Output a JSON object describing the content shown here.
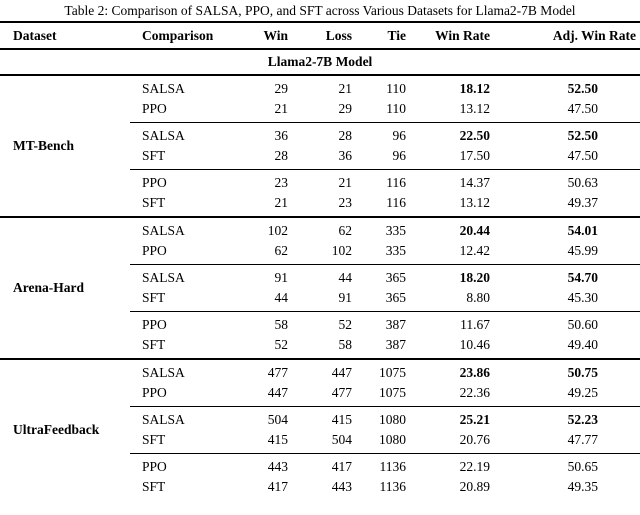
{
  "title": "Table 2: Comparison of SALSA, PPO, and SFT across Various Datasets for Llama2-7B Model",
  "table": {
    "columns": {
      "dataset": "Dataset",
      "comparison": "Comparison",
      "win": "Win",
      "loss": "Loss",
      "tie": "Tie",
      "win_rate": "Win Rate",
      "adj_win_rate": "Adj. Win Rate"
    },
    "model_header": "Llama2-7B Model",
    "groups": [
      {
        "dataset": "MT-Bench",
        "pairs": [
          {
            "rows": [
              {
                "comparison": "SALSA",
                "win": "29",
                "loss": "21",
                "tie": "110",
                "win_rate": "18.12",
                "adj_win_rate": "52.50",
                "bold": true
              },
              {
                "comparison": "PPO",
                "win": "21",
                "loss": "29",
                "tie": "110",
                "win_rate": "13.12",
                "adj_win_rate": "47.50",
                "bold": false
              }
            ]
          },
          {
            "rows": [
              {
                "comparison": "SALSA",
                "win": "36",
                "loss": "28",
                "tie": "96",
                "win_rate": "22.50",
                "adj_win_rate": "52.50",
                "bold": true
              },
              {
                "comparison": "SFT",
                "win": "28",
                "loss": "36",
                "tie": "96",
                "win_rate": "17.50",
                "adj_win_rate": "47.50",
                "bold": false
              }
            ]
          },
          {
            "rows": [
              {
                "comparison": "PPO",
                "win": "23",
                "loss": "21",
                "tie": "116",
                "win_rate": "14.37",
                "adj_win_rate": "50.63",
                "bold": false
              },
              {
                "comparison": "SFT",
                "win": "21",
                "loss": "23",
                "tie": "116",
                "win_rate": "13.12",
                "adj_win_rate": "49.37",
                "bold": false
              }
            ]
          }
        ]
      },
      {
        "dataset": "Arena-Hard",
        "pairs": [
          {
            "rows": [
              {
                "comparison": "SALSA",
                "win": "102",
                "loss": "62",
                "tie": "335",
                "win_rate": "20.44",
                "adj_win_rate": "54.01",
                "bold": true
              },
              {
                "comparison": "PPO",
                "win": "62",
                "loss": "102",
                "tie": "335",
                "win_rate": "12.42",
                "adj_win_rate": "45.99",
                "bold": false
              }
            ]
          },
          {
            "rows": [
              {
                "comparison": "SALSA",
                "win": "91",
                "loss": "44",
                "tie": "365",
                "win_rate": "18.20",
                "adj_win_rate": "54.70",
                "bold": true
              },
              {
                "comparison": "SFT",
                "win": "44",
                "loss": "91",
                "tie": "365",
                "win_rate": "8.80",
                "adj_win_rate": "45.30",
                "bold": false
              }
            ]
          },
          {
            "rows": [
              {
                "comparison": "PPO",
                "win": "58",
                "loss": "52",
                "tie": "387",
                "win_rate": "11.67",
                "adj_win_rate": "50.60",
                "bold": false
              },
              {
                "comparison": "SFT",
                "win": "52",
                "loss": "58",
                "tie": "387",
                "win_rate": "10.46",
                "adj_win_rate": "49.40",
                "bold": false
              }
            ]
          }
        ]
      },
      {
        "dataset": "UltraFeedback",
        "pairs": [
          {
            "rows": [
              {
                "comparison": "SALSA",
                "win": "477",
                "loss": "447",
                "tie": "1075",
                "win_rate": "23.86",
                "adj_win_rate": "50.75",
                "bold": true
              },
              {
                "comparison": "PPO",
                "win": "447",
                "loss": "477",
                "tie": "1075",
                "win_rate": "22.36",
                "adj_win_rate": "49.25",
                "bold": false
              }
            ]
          },
          {
            "rows": [
              {
                "comparison": "SALSA",
                "win": "504",
                "loss": "415",
                "tie": "1080",
                "win_rate": "25.21",
                "adj_win_rate": "52.23",
                "bold": true
              },
              {
                "comparison": "SFT",
                "win": "415",
                "loss": "504",
                "tie": "1080",
                "win_rate": "20.76",
                "adj_win_rate": "47.77",
                "bold": false
              }
            ]
          },
          {
            "rows": [
              {
                "comparison": "PPO",
                "win": "443",
                "loss": "417",
                "tie": "1136",
                "win_rate": "22.19",
                "adj_win_rate": "50.65",
                "bold": false
              },
              {
                "comparison": "SFT",
                "win": "417",
                "loss": "443",
                "tie": "1136",
                "win_rate": "20.89",
                "adj_win_rate": "49.35",
                "bold": false
              }
            ]
          }
        ]
      }
    ]
  }
}
